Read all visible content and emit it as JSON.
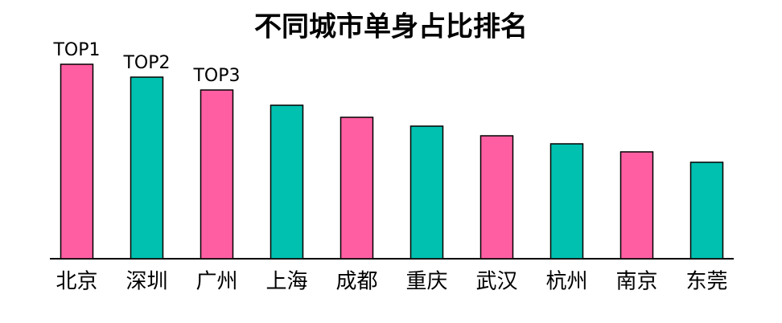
{
  "chart_data": {
    "type": "bar",
    "title": "不同城市单身占比排名",
    "categories": [
      "北京",
      "深圳",
      "广州",
      "上海",
      "成都",
      "重庆",
      "武汉",
      "杭州",
      "南京",
      "东莞"
    ],
    "values": [
      242,
      226,
      210,
      191,
      176,
      165,
      153,
      143,
      133,
      120
    ],
    "colors": [
      "#ff5fa2",
      "#00c0b0",
      "#ff5fa2",
      "#00c0b0",
      "#ff5fa2",
      "#00c0b0",
      "#ff5fa2",
      "#00c0b0",
      "#ff5fa2",
      "#00c0b0"
    ],
    "annotations": [
      "TOP1",
      "TOP2",
      "TOP3"
    ],
    "ylim": [
      0,
      242
    ]
  }
}
